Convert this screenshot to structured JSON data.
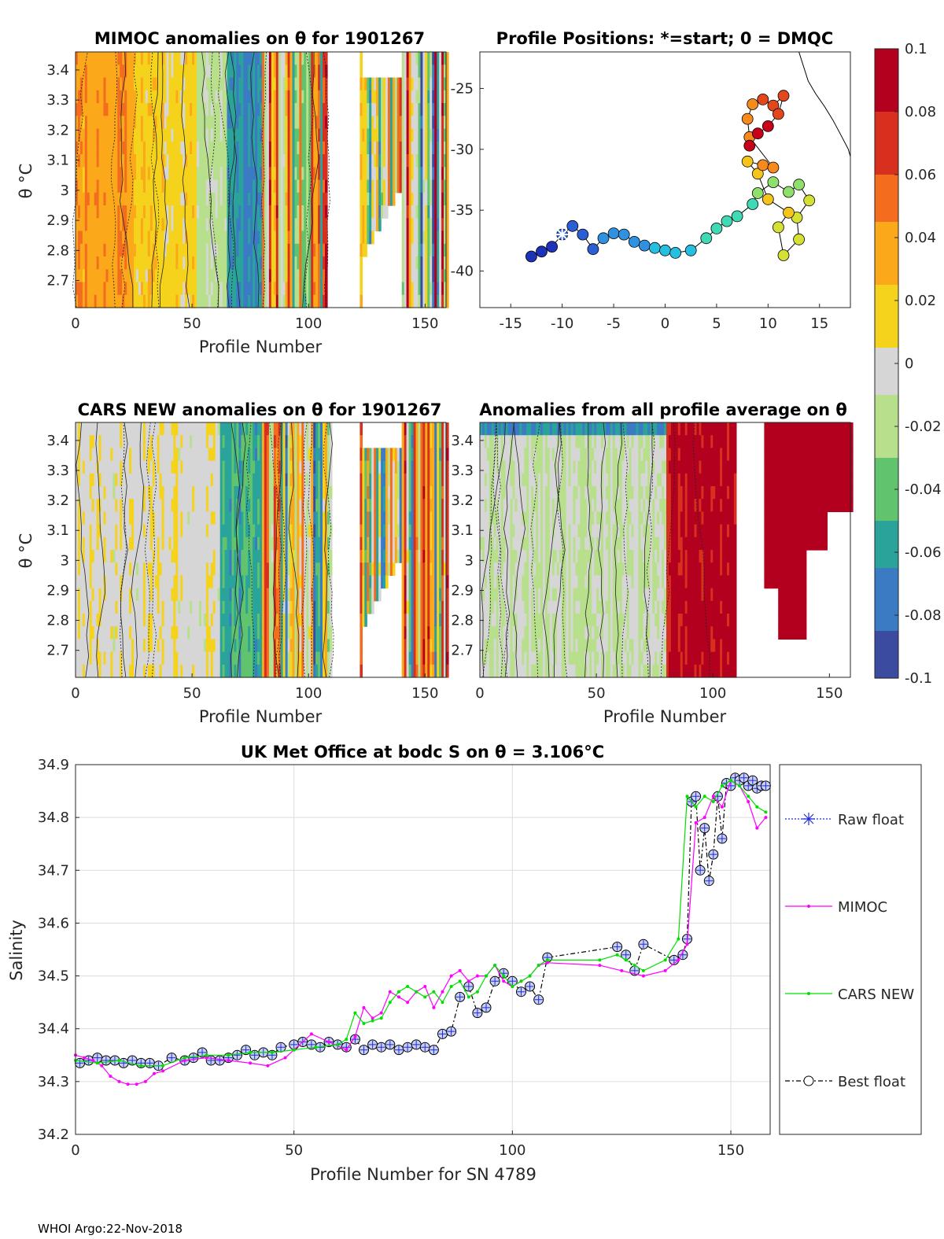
{
  "float_id": "1901267",
  "footer": "WHOI Argo:22-Nov-2018",
  "panels": {
    "mimoc": {
      "title": "MIMOC anomalies on θ  for 1901267",
      "xlabel": "Profile Number",
      "ylabel": "θ °C"
    },
    "positions": {
      "title": "Profile Positions: *=start; 0 = DMQC"
    },
    "cars": {
      "title": "CARS NEW anomalies on θ for 1901267",
      "xlabel": "Profile Number",
      "ylabel": "θ °C"
    },
    "allavg": {
      "title": "Anomalies from all profile average on θ",
      "xlabel": "Profile Number"
    },
    "met": {
      "title": "UK Met Office at bodc S on θ = 3.106°C",
      "xlabel": "Profile Number for SN 4789",
      "ylabel": "Salinity"
    }
  },
  "colorbar": {
    "ticks": [
      "0.1",
      "0.08",
      "0.06",
      "0.04",
      "0.02",
      "0",
      "-0.02",
      "-0.04",
      "-0.06",
      "-0.08",
      "-0.1"
    ],
    "colors": [
      "#b2001e",
      "#d7301f",
      "#f46d1f",
      "#fba81a",
      "#f5d31c",
      "#d6d6d6",
      "#b8e08c",
      "#61c36e",
      "#2aa39a",
      "#3a7bc4",
      "#3b4ba0"
    ]
  },
  "chart_data": [
    {
      "id": "mimoc",
      "type": "heatmap",
      "title": "MIMOC anomalies on θ  for 1901267",
      "xlabel": "Profile Number",
      "ylabel": "θ °C",
      "xlim": [
        0,
        159
      ],
      "ylim": [
        2.61,
        3.46
      ],
      "xticks": [
        "0",
        "50",
        "100",
        "150"
      ],
      "yticks": [
        "2.7",
        "2.8",
        "2.9",
        "3",
        "3.1",
        "3.2",
        "3.3",
        "3.4"
      ],
      "gaps": [
        [
          108,
          122
        ]
      ]
    },
    {
      "id": "positions",
      "type": "scatter",
      "title": "Profile Positions: *=start; 0 = DMQC",
      "xlim": [
        -18,
        18
      ],
      "ylim": [
        -43,
        -22
      ],
      "xticks": [
        "-15",
        "-10",
        "-5",
        "0",
        "5",
        "10",
        "15"
      ],
      "yticks": [
        "-25",
        "-30",
        "-35",
        "-40"
      ],
      "track": [
        [
          -13.0,
          -38.8
        ],
        [
          -12.0,
          -38.4
        ],
        [
          -11.0,
          -38.0
        ],
        [
          -10.0,
          -37.0
        ],
        [
          -9.0,
          -36.3
        ],
        [
          -8.0,
          -37.0
        ],
        [
          -7.0,
          -38.2
        ],
        [
          -6.0,
          -37.3
        ],
        [
          -5.0,
          -36.9
        ],
        [
          -4.0,
          -37.0
        ],
        [
          -3.0,
          -37.6
        ],
        [
          -2.0,
          -37.9
        ],
        [
          -1.0,
          -38.1
        ],
        [
          0.0,
          -38.3
        ],
        [
          1.0,
          -38.5
        ],
        [
          2.5,
          -38.3
        ],
        [
          4.0,
          -37.3
        ],
        [
          5.0,
          -36.5
        ],
        [
          6.0,
          -35.9
        ],
        [
          7.0,
          -35.5
        ],
        [
          8.5,
          -34.5
        ],
        [
          9.0,
          -33.6
        ],
        [
          10.5,
          -32.7
        ],
        [
          12.0,
          -33.5
        ],
        [
          13.0,
          -32.9
        ],
        [
          14.0,
          -34.2
        ],
        [
          12.8,
          -35.6
        ],
        [
          13.0,
          -37.4
        ],
        [
          11.5,
          -38.7
        ],
        [
          11.0,
          -36.4
        ],
        [
          12.0,
          -35.2
        ],
        [
          10.0,
          -34.1
        ],
        [
          9.0,
          -32.0
        ],
        [
          8.0,
          -31.0
        ],
        [
          9.5,
          -31.3
        ],
        [
          10.5,
          -31.5
        ],
        [
          8.2,
          -29.0
        ],
        [
          8.0,
          -27.5
        ],
        [
          8.5,
          -26.3
        ],
        [
          9.5,
          -25.9
        ],
        [
          10.5,
          -26.4
        ],
        [
          11.5,
          -25.6
        ],
        [
          11.0,
          -27.1
        ],
        [
          10.0,
          -28.1
        ],
        [
          9.0,
          -28.7
        ],
        [
          8.2,
          -29.7
        ]
      ],
      "start": [
        -10.0,
        -37.0
      ],
      "coast": [
        [
          13.0,
          -22.0
        ],
        [
          13.3,
          -22.8
        ],
        [
          13.9,
          -24.4
        ],
        [
          14.6,
          -25.4
        ],
        [
          15.5,
          -26.5
        ],
        [
          16.3,
          -27.6
        ],
        [
          17.0,
          -28.7
        ],
        [
          17.8,
          -30.0
        ],
        [
          18.0,
          -30.6
        ]
      ]
    },
    {
      "id": "cars",
      "type": "heatmap",
      "title": "CARS NEW anomalies on θ for 1901267",
      "xlabel": "Profile Number",
      "ylabel": "θ °C",
      "xlim": [
        0,
        159
      ],
      "ylim": [
        2.61,
        3.46
      ],
      "xticks": [
        "0",
        "50",
        "100",
        "150"
      ],
      "yticks": [
        "2.7",
        "2.8",
        "2.9",
        "3",
        "3.1",
        "3.2",
        "3.3",
        "3.4"
      ],
      "gaps": [
        [
          110,
          122
        ]
      ]
    },
    {
      "id": "allavg",
      "type": "heatmap",
      "title": "Anomalies from all profile average on θ",
      "xlabel": "Profile Number",
      "xlim": [
        0,
        159
      ],
      "ylim": [
        2.61,
        3.46
      ],
      "xticks": [
        "0",
        "50",
        "100",
        "150"
      ],
      "yticks": [
        "2.7",
        "2.8",
        "2.9",
        "3",
        "3.1",
        "3.2",
        "3.3",
        "3.4"
      ],
      "gaps": [
        [
          110,
          122
        ]
      ]
    },
    {
      "id": "met",
      "type": "line",
      "title": "UK Met Office at bodc S on θ = 3.106°C",
      "xlabel": "Profile Number for SN 4789",
      "ylabel": "Salinity",
      "xlim": [
        0,
        159
      ],
      "ylim": [
        34.2,
        34.9
      ],
      "xticks": [
        "0",
        "50",
        "100",
        "150"
      ],
      "yticks": [
        "34.2",
        "34.3",
        "34.4",
        "34.5",
        "34.6",
        "34.7",
        "34.8",
        "34.9"
      ],
      "legend": [
        "Raw float",
        "MIMOC",
        "CARS NEW",
        "Best float"
      ],
      "series": [
        {
          "name": "Best float",
          "x": [
            1,
            3,
            5,
            7,
            9,
            11,
            13,
            15,
            17,
            19,
            22,
            25,
            27,
            29,
            31,
            33,
            35,
            37,
            39,
            41,
            43,
            45,
            47,
            50,
            52,
            54,
            56,
            58,
            60,
            62,
            64,
            66,
            68,
            70,
            72,
            74,
            76,
            78,
            80,
            82,
            84,
            86,
            88,
            90,
            92,
            94,
            96,
            98,
            100,
            102,
            104,
            106,
            108,
            124,
            126,
            128,
            130,
            137,
            139,
            140,
            141,
            142,
            143,
            144,
            145,
            146,
            147,
            148,
            149,
            150,
            151,
            152,
            153,
            154,
            155,
            156,
            157,
            158
          ],
          "y": [
            34.335,
            34.34,
            34.345,
            34.34,
            34.34,
            34.335,
            34.34,
            34.335,
            34.335,
            34.33,
            34.345,
            34.34,
            34.345,
            34.355,
            34.34,
            34.34,
            34.345,
            34.35,
            34.36,
            34.35,
            34.355,
            34.35,
            34.365,
            34.37,
            34.375,
            34.37,
            34.365,
            34.375,
            34.37,
            34.365,
            34.38,
            34.36,
            34.37,
            34.365,
            34.37,
            34.36,
            34.365,
            34.37,
            34.365,
            34.36,
            34.39,
            34.395,
            34.46,
            34.48,
            34.43,
            34.44,
            34.49,
            34.505,
            34.49,
            34.47,
            34.48,
            34.455,
            34.535,
            34.555,
            34.54,
            34.51,
            34.56,
            34.53,
            34.54,
            34.57,
            34.83,
            34.84,
            34.7,
            34.78,
            34.68,
            34.73,
            34.84,
            34.76,
            34.865,
            34.86,
            34.875,
            34.87,
            34.875,
            34.86,
            34.87,
            34.855,
            34.86,
            34.86
          ]
        },
        {
          "name": "MIMOC",
          "x": [
            0,
            2,
            4,
            6,
            8,
            10,
            12,
            14,
            16,
            18,
            20,
            25,
            30,
            35,
            40,
            44,
            48,
            50,
            54,
            58,
            62,
            64,
            66,
            68,
            70,
            72,
            74,
            76,
            78,
            80,
            82,
            84,
            86,
            88,
            90,
            92,
            94,
            96,
            98,
            100,
            102,
            104,
            106,
            108,
            120,
            125,
            130,
            135,
            138,
            140,
            142,
            144,
            146,
            148,
            150,
            152,
            154,
            156,
            158
          ],
          "y": [
            34.35,
            34.345,
            34.34,
            34.33,
            34.31,
            34.3,
            34.295,
            34.295,
            34.3,
            34.315,
            34.32,
            34.34,
            34.345,
            34.34,
            34.335,
            34.33,
            34.345,
            34.36,
            34.39,
            34.375,
            34.36,
            34.385,
            34.44,
            34.42,
            34.43,
            34.47,
            34.46,
            34.45,
            34.47,
            34.48,
            34.44,
            34.47,
            34.5,
            34.51,
            34.49,
            34.5,
            34.5,
            34.52,
            34.49,
            34.48,
            34.49,
            34.5,
            34.52,
            34.525,
            34.52,
            34.51,
            34.5,
            34.51,
            34.53,
            34.56,
            34.79,
            34.8,
            34.84,
            34.82,
            34.87,
            34.86,
            34.83,
            34.78,
            34.8
          ]
        },
        {
          "name": "CARS NEW",
          "x": [
            0,
            5,
            10,
            15,
            20,
            25,
            30,
            35,
            40,
            45,
            50,
            55,
            60,
            62,
            64,
            66,
            68,
            70,
            72,
            74,
            76,
            78,
            80,
            82,
            84,
            86,
            88,
            90,
            92,
            94,
            96,
            98,
            100,
            102,
            104,
            106,
            108,
            120,
            124,
            126,
            128,
            130,
            135,
            138,
            140,
            142,
            144,
            146,
            148,
            150,
            152,
            154,
            156,
            158
          ],
          "y": [
            34.34,
            34.335,
            34.34,
            34.33,
            34.33,
            34.345,
            34.35,
            34.35,
            34.355,
            34.355,
            34.36,
            34.365,
            34.37,
            34.38,
            34.43,
            34.41,
            34.415,
            34.42,
            34.45,
            34.47,
            34.48,
            34.47,
            34.46,
            34.47,
            34.45,
            34.48,
            34.49,
            34.46,
            34.47,
            34.5,
            34.52,
            34.5,
            34.48,
            34.49,
            34.5,
            34.52,
            34.53,
            34.53,
            34.54,
            34.53,
            34.52,
            34.51,
            34.53,
            34.57,
            34.84,
            34.82,
            34.84,
            34.83,
            34.86,
            34.87,
            34.86,
            34.84,
            34.82,
            34.81
          ]
        }
      ]
    }
  ]
}
